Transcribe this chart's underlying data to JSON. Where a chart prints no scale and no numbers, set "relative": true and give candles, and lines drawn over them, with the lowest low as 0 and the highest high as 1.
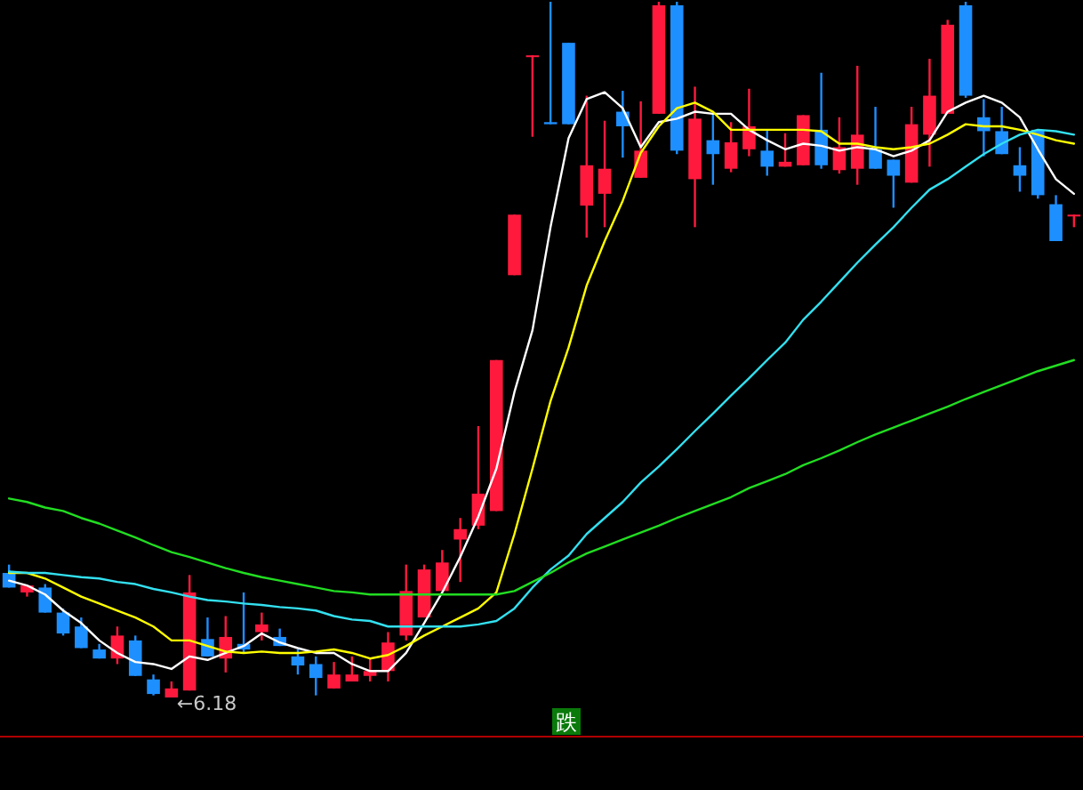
{
  "chart_data": {
    "type": "candlestick",
    "relative": true,
    "categories": [
      null,
      null,
      null,
      null,
      null,
      null,
      null,
      null,
      null,
      null,
      null,
      null,
      null,
      null,
      null,
      null,
      null,
      null,
      null,
      null,
      null,
      null,
      null,
      null,
      null,
      null,
      null,
      null,
      null,
      null,
      null,
      null,
      null,
      null,
      null,
      null,
      null,
      null,
      null,
      null,
      null,
      null,
      null,
      null,
      null,
      null,
      null,
      null,
      null,
      null,
      null,
      null,
      null,
      null,
      null,
      null,
      null,
      null,
      null,
      null
    ],
    "ohlc": [
      [
        0.179,
        0.191,
        0.158,
        0.158
      ],
      [
        0.151,
        0.161,
        0.145,
        0.161
      ],
      [
        0.158,
        0.163,
        0.122,
        0.122
      ],
      [
        0.122,
        0.128,
        0.089,
        0.092
      ],
      [
        0.102,
        0.115,
        0.071,
        0.071
      ],
      [
        0.069,
        0.077,
        0.056,
        0.056
      ],
      [
        0.056,
        0.102,
        0.048,
        0.089
      ],
      [
        0.082,
        0.089,
        0.031,
        0.031
      ],
      [
        0.026,
        0.033,
        0.003,
        0.005
      ],
      [
        0,
        0.023,
        0,
        0.013
      ],
      [
        0.01,
        0.176,
        0.01,
        0.151
      ],
      [
        0.084,
        0.115,
        0.059,
        0.059
      ],
      [
        0.056,
        0.117,
        0.036,
        0.087
      ],
      [
        0.077,
        0.151,
        0.064,
        0.069
      ],
      [
        0.094,
        0.122,
        0.082,
        0.105
      ],
      [
        0.087,
        0.099,
        0.074,
        0.074
      ],
      [
        0.059,
        0.069,
        0.033,
        0.046
      ],
      [
        0.048,
        0.059,
        0.003,
        0.028
      ],
      [
        0.013,
        0.051,
        0.013,
        0.033
      ],
      [
        0.023,
        0.059,
        0.023,
        0.033
      ],
      [
        0.031,
        0.056,
        0.023,
        0.038
      ],
      [
        0.038,
        0.094,
        0.023,
        0.079
      ],
      [
        0.089,
        0.191,
        0.082,
        0.153
      ],
      [
        0.115,
        0.191,
        0.115,
        0.184
      ],
      [
        0.153,
        0.212,
        0.153,
        0.194
      ],
      [
        0.227,
        0.258,
        0.166,
        0.242
      ],
      [
        0.247,
        0.39,
        0.242,
        0.293
      ],
      [
        0.268,
        0.485,
        0.268,
        0.485
      ],
      [
        0.607,
        0.694,
        0.607,
        0.694
      ],
      [
        0.921,
        0.923,
        0.806,
        0.923
      ],
      [
        0.827,
        1,
        0.824,
        0.824
      ],
      [
        0.941,
        0.941,
        0.824,
        0.824
      ],
      [
        0.707,
        0.865,
        0.661,
        0.765
      ],
      [
        0.724,
        0.829,
        0.676,
        0.76
      ],
      [
        0.842,
        0.872,
        0.776,
        0.821
      ],
      [
        0.747,
        0.857,
        0.747,
        0.786
      ],
      [
        0.839,
        1,
        0.839,
        0.995
      ],
      [
        0.995,
        1,
        0.781,
        0.786
      ],
      [
        0.745,
        0.878,
        0.676,
        0.832
      ],
      [
        0.801,
        0.839,
        0.737,
        0.781
      ],
      [
        0.76,
        0.827,
        0.755,
        0.798
      ],
      [
        0.788,
        0.875,
        0.778,
        0.821
      ],
      [
        0.786,
        0.816,
        0.75,
        0.763
      ],
      [
        0.763,
        0.811,
        0.763,
        0.77
      ],
      [
        0.765,
        0.837,
        0.765,
        0.837
      ],
      [
        0.816,
        0.898,
        0.76,
        0.765
      ],
      [
        0.758,
        0.834,
        0.753,
        0.791
      ],
      [
        0.76,
        0.908,
        0.737,
        0.809
      ],
      [
        0.788,
        0.849,
        0.76,
        0.76
      ],
      [
        0.773,
        0.773,
        0.704,
        0.75
      ],
      [
        0.74,
        0.849,
        0.74,
        0.824
      ],
      [
        0.809,
        0.918,
        0.763,
        0.865
      ],
      [
        0.839,
        0.974,
        0.839,
        0.967
      ],
      [
        0.995,
        1,
        0.862,
        0.865
      ],
      [
        0.834,
        0.86,
        0.778,
        0.814
      ],
      [
        0.814,
        0.849,
        0.781,
        0.781
      ],
      [
        0.765,
        0.791,
        0.727,
        0.75
      ],
      [
        0.816,
        0.816,
        0.717,
        0.722
      ],
      [
        0.709,
        0.722,
        0.656,
        0.656
      ],
      [
        0.694,
        0.694,
        0.676,
        0.694
      ]
    ],
    "colors": [
      "#1e8fff",
      "#ff1a3d",
      "#1e8fff",
      "#1e8fff",
      "#1e8fff",
      "#1e8fff",
      "#ff1a3d",
      "#1e8fff",
      "#1e8fff",
      "#ff1a3d",
      "#ff1a3d",
      "#1e8fff",
      "#ff1a3d",
      "#1e8fff",
      "#ff1a3d",
      "#1e8fff",
      "#1e8fff",
      "#1e8fff",
      "#ff1a3d",
      "#ff1a3d",
      "#ff1a3d",
      "#ff1a3d",
      "#ff1a3d",
      "#ff1a3d",
      "#ff1a3d",
      "#ff1a3d",
      "#ff1a3d",
      "#ff1a3d",
      "#ff1a3d",
      "#ff1a3d",
      "#1e8fff",
      "#1e8fff",
      "#ff1a3d",
      "#ff1a3d",
      "#1e8fff",
      "#ff1a3d",
      "#ff1a3d",
      "#1e8fff",
      "#ff1a3d",
      "#1e8fff",
      "#ff1a3d",
      "#ff1a3d",
      "#1e8fff",
      "#ff1a3d",
      "#ff1a3d",
      "#1e8fff",
      "#ff1a3d",
      "#ff1a3d",
      "#1e8fff",
      "#1e8fff",
      "#ff1a3d",
      "#ff1a3d",
      "#ff1a3d",
      "#1e8fff",
      "#1e8fff",
      "#1e8fff",
      "#1e8fff",
      "#1e8fff",
      "#1e8fff",
      "#ff1a3d"
    ],
    "series": [
      {
        "type": "line",
        "color": "#ffffff",
        "values": [
          0.168,
          0.161,
          0.148,
          0.125,
          0.107,
          0.082,
          0.064,
          0.051,
          0.048,
          0.041,
          0.059,
          0.054,
          0.064,
          0.074,
          0.092,
          0.079,
          0.071,
          0.064,
          0.064,
          0.048,
          0.038,
          0.038,
          0.064,
          0.107,
          0.151,
          0.202,
          0.26,
          0.329,
          0.439,
          0.528,
          0.676,
          0.804,
          0.86,
          0.87,
          0.847,
          0.791,
          0.827,
          0.832,
          0.842,
          0.839,
          0.839,
          0.816,
          0.801,
          0.788,
          0.796,
          0.793,
          0.786,
          0.791,
          0.788,
          0.778,
          0.786,
          0.801,
          0.842,
          0.855,
          0.865,
          0.855,
          0.834,
          0.788,
          0.745,
          0.724
        ]
      },
      {
        "type": "line",
        "color": "#ffff00",
        "values": [
          0.179,
          0.179,
          0.171,
          0.158,
          0.145,
          0.135,
          0.125,
          0.115,
          0.102,
          0.082,
          0.082,
          0.074,
          0.066,
          0.064,
          0.066,
          0.064,
          0.064,
          0.066,
          0.069,
          0.064,
          0.056,
          0.061,
          0.074,
          0.089,
          0.102,
          0.115,
          0.128,
          0.151,
          0.235,
          0.329,
          0.426,
          0.503,
          0.592,
          0.656,
          0.714,
          0.783,
          0.821,
          0.847,
          0.855,
          0.842,
          0.816,
          0.816,
          0.816,
          0.816,
          0.816,
          0.814,
          0.796,
          0.796,
          0.791,
          0.788,
          0.791,
          0.796,
          0.809,
          0.824,
          0.821,
          0.821,
          0.816,
          0.809,
          0.801,
          0.796
        ]
      },
      {
        "type": "line",
        "color": "#33e0f0",
        "values": [
          0.181,
          0.179,
          0.179,
          0.176,
          0.173,
          0.171,
          0.166,
          0.163,
          0.156,
          0.151,
          0.145,
          0.14,
          0.138,
          0.135,
          0.133,
          0.13,
          0.128,
          0.125,
          0.117,
          0.112,
          0.11,
          0.102,
          0.102,
          0.102,
          0.102,
          0.102,
          0.105,
          0.11,
          0.128,
          0.158,
          0.184,
          0.204,
          0.235,
          0.258,
          0.281,
          0.309,
          0.332,
          0.357,
          0.383,
          0.408,
          0.434,
          0.459,
          0.485,
          0.51,
          0.543,
          0.569,
          0.597,
          0.625,
          0.651,
          0.676,
          0.704,
          0.73,
          0.745,
          0.763,
          0.781,
          0.796,
          0.809,
          0.816,
          0.814,
          0.809
        ]
      },
      {
        "type": "line",
        "color": "#22dd22",
        "values": [
          0.286,
          0.281,
          0.273,
          0.268,
          0.258,
          0.25,
          0.24,
          0.23,
          0.219,
          0.209,
          0.202,
          0.194,
          0.186,
          0.179,
          0.173,
          0.168,
          0.163,
          0.158,
          0.153,
          0.151,
          0.148,
          0.148,
          0.148,
          0.148,
          0.148,
          0.148,
          0.148,
          0.148,
          0.153,
          0.166,
          0.179,
          0.194,
          0.207,
          0.217,
          0.227,
          0.237,
          0.247,
          0.258,
          0.268,
          0.278,
          0.288,
          0.301,
          0.311,
          0.321,
          0.334,
          0.344,
          0.355,
          0.367,
          0.378,
          0.388,
          0.398,
          0.408,
          0.418,
          0.429,
          0.439,
          0.449,
          0.459,
          0.469,
          0.477,
          0.485
        ]
      }
    ],
    "annotations": [
      "←6.18",
      "跌"
    ]
  }
}
